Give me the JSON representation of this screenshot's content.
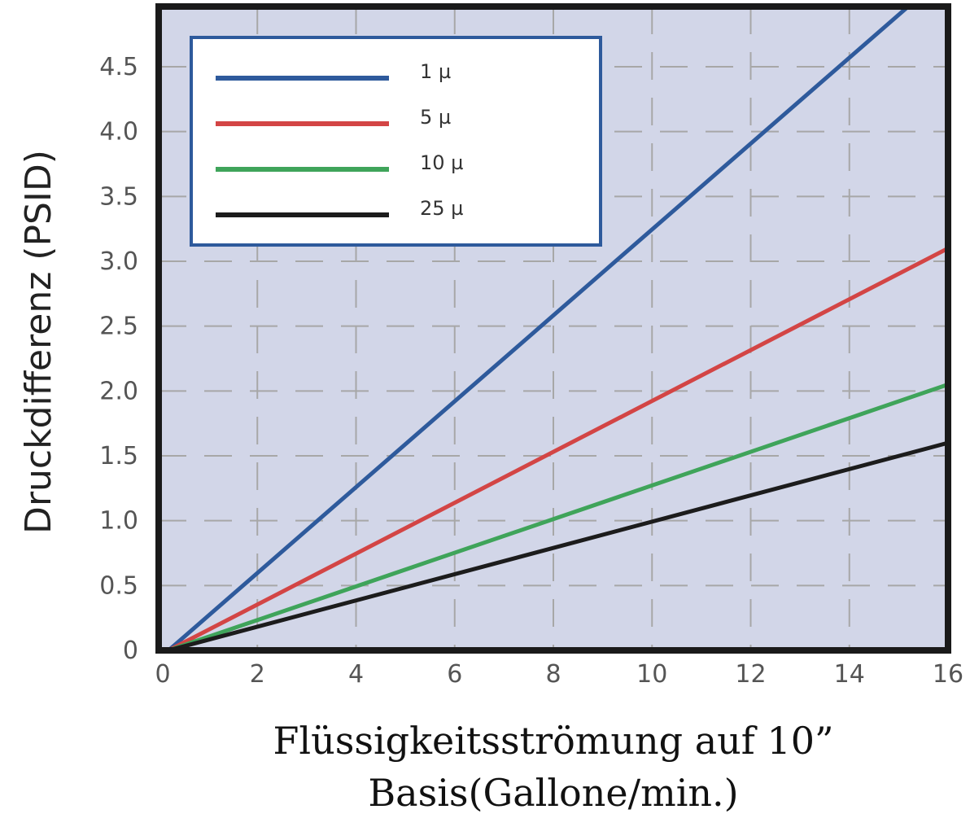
{
  "chart_data": {
    "type": "line",
    "title": "",
    "xlabel_lines": [
      "Flüssigkeitsströmung auf 10”",
      "Basis(Gallone/min.)"
    ],
    "ylabel": "Druckdifferenz (PSID)",
    "xlim": [
      0,
      16
    ],
    "ylim": [
      0,
      5
    ],
    "x_ticks": [
      "0",
      "2",
      "4",
      "6",
      "8",
      "10",
      "12",
      "14",
      "16"
    ],
    "y_ticks": [
      "0",
      "0.5",
      "1.0",
      "1.5",
      "2.0",
      "2.5",
      "3.0",
      "3.5",
      "4.0",
      "4.5"
    ],
    "grid": true,
    "grid_style": "dashed",
    "legend_position": "top-left",
    "background_color": "#d2d6e8",
    "frame_color": "#1a1a1a",
    "series": [
      {
        "name": "1 µ",
        "color": "#2e5a9c",
        "x": [
          0.2,
          15.3
        ],
        "y": [
          0,
          5.0
        ]
      },
      {
        "name": "5 µ",
        "color": "#d34545",
        "x": [
          0.2,
          16
        ],
        "y": [
          0,
          3.1
        ]
      },
      {
        "name": "10 µ",
        "color": "#3fa45a",
        "x": [
          0.2,
          16
        ],
        "y": [
          0,
          2.05
        ]
      },
      {
        "name": "25 µ",
        "color": "#1c1c1c",
        "x": [
          0.2,
          16
        ],
        "y": [
          0,
          1.6
        ]
      }
    ]
  }
}
